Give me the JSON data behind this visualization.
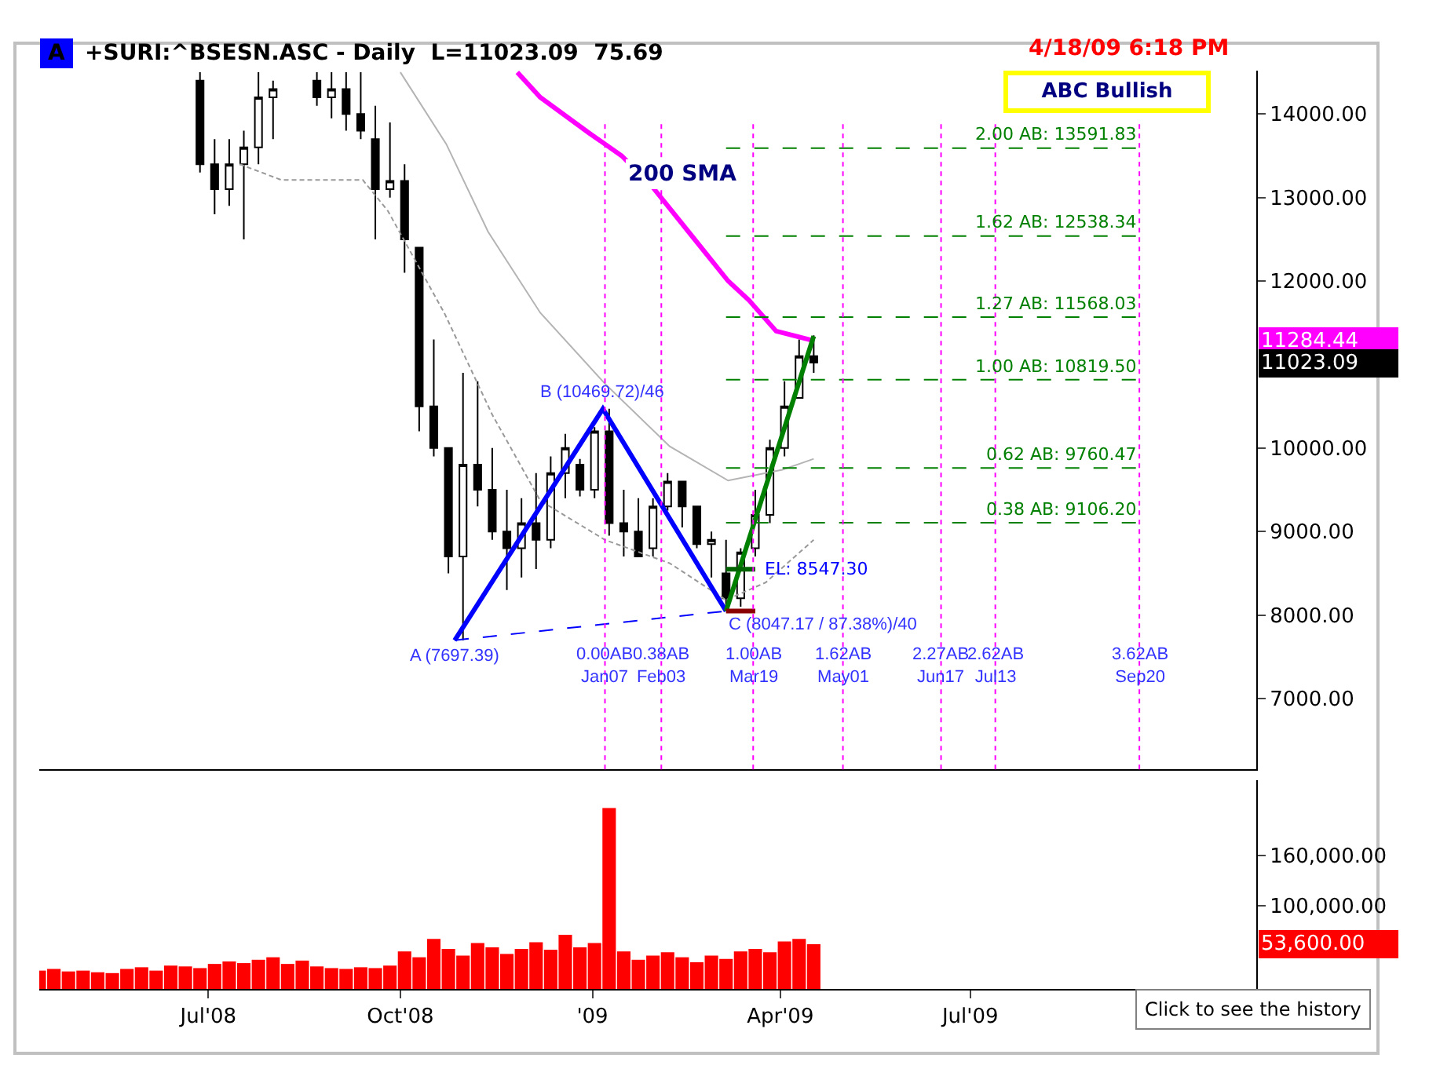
{
  "chart_data": [
    {
      "type": "candlestick",
      "title": "+SURI:^BSESN.ASC - Daily  L=11023.09  75.69",
      "tick_labels": "y",
      "xlim": [
        "2008-04-11",
        "2009-11-15"
      ],
      "ylim": [
        6150,
        14520
      ],
      "yticks": [
        {
          "value": 7000,
          "label": "7000.00"
        },
        {
          "value": 8000,
          "label": "8000.00"
        },
        {
          "value": 9000,
          "label": "9000.00"
        },
        {
          "value": 10000,
          "label": "10000.00"
        },
        {
          "value": 12000,
          "label": "12000.00"
        },
        {
          "value": 13000,
          "label": "13000.00"
        },
        {
          "value": 14000,
          "label": "14000.00"
        }
      ],
      "series": [
        {
          "type": "candlestick",
          "color": "#000000",
          "x": [
            "2008-06-27",
            "2008-07-04",
            "2008-07-11",
            "2008-07-18",
            "2008-07-25",
            "2008-08-01",
            "2008-08-22",
            "2008-08-29",
            "2008-09-05",
            "2008-09-12",
            "2008-09-19",
            "2008-09-26",
            "2008-10-03",
            "2008-10-10",
            "2008-10-17",
            "2008-10-24",
            "2008-10-31",
            "2008-11-07",
            "2008-11-14",
            "2008-11-21",
            "2008-11-28",
            "2008-12-05",
            "2008-12-12",
            "2008-12-19",
            "2008-12-26",
            "2009-01-02",
            "2009-01-09",
            "2009-01-16",
            "2009-01-23",
            "2009-01-30",
            "2009-02-06",
            "2009-02-13",
            "2009-02-20",
            "2009-02-27",
            "2009-03-06",
            "2009-03-13",
            "2009-03-20",
            "2009-03-27",
            "2009-04-03",
            "2009-04-10",
            "2009-04-17"
          ],
          "ohlc": [
            [
              14400,
              14500,
              13300,
              13400
            ],
            [
              13400,
              13700,
              12800,
              13100
            ],
            [
              13100,
              13700,
              12900,
              13400
            ],
            [
              13400,
              13800,
              12500,
              13600
            ],
            [
              13600,
              14500,
              13400,
              14200
            ],
            [
              14200,
              14400,
              13700,
              14300
            ],
            [
              14400,
              14500,
              14100,
              14200
            ],
            [
              14200,
              14500,
              13950,
              14300
            ],
            [
              14300,
              14500,
              13800,
              14000
            ],
            [
              14000,
              14500,
              13700,
              13800
            ],
            [
              13700,
              14100,
              12500,
              13100
            ],
            [
              13100,
              13900,
              13000,
              13200
            ],
            [
              13200,
              13400,
              12100,
              12500
            ],
            [
              12400,
              12400,
              10200,
              10500
            ],
            [
              10500,
              11300,
              9900,
              10000
            ],
            [
              10000,
              10000,
              8500,
              8700
            ],
            [
              8700,
              10900,
              7697.39,
              9800
            ],
            [
              9800,
              10800,
              9300,
              9500
            ],
            [
              9500,
              10000,
              8900,
              9000
            ],
            [
              9000,
              9500,
              8300,
              8800
            ],
            [
              8800,
              9400,
              8450,
              9100
            ],
            [
              9100,
              9700,
              8550,
              8900
            ],
            [
              8900,
              9900,
              8800,
              9700
            ],
            [
              9700,
              10170,
              9400,
              10000
            ],
            [
              9800,
              9870,
              9420,
              9500
            ],
            [
              9500,
              10250,
              9400,
              10200
            ],
            [
              10200,
              10469.72,
              8950,
              9100
            ],
            [
              9100,
              9500,
              8700,
              9000
            ],
            [
              9000,
              9400,
              8700,
              8700
            ],
            [
              8800,
              9400,
              8700,
              9300
            ],
            [
              9300,
              9700,
              9250,
              9600
            ],
            [
              9600,
              9600,
              9050,
              9300
            ],
            [
              9300,
              9300,
              8800,
              8850
            ],
            [
              8850,
              9000,
              8450,
              8900
            ],
            [
              8500,
              8900,
              8047.17,
              8200
            ],
            [
              8200,
              8800,
              8100,
              8750
            ],
            [
              8800,
              9500,
              8700,
              9200
            ],
            [
              9200,
              10100,
              9100,
              10000
            ],
            [
              10000,
              10800,
              9900,
              10500
            ],
            [
              10600,
              11300,
              10600,
              11100
            ],
            [
              11100,
              11350,
              10900,
              11023.09
            ]
          ]
        },
        {
          "type": "line",
          "color": "#b4b4b4",
          "x": [
            "2008-10-01",
            "2008-10-23",
            "2008-11-12",
            "2008-12-07",
            "2009-01-07",
            "2009-02-07",
            "2009-03-07",
            "2009-04-02",
            "2009-04-17"
          ],
          "values": [
            14500,
            13640,
            12590,
            11620,
            10770,
            10020,
            9610,
            9740,
            9870
          ]
        },
        {
          "type": "line",
          "color": "#999999",
          "line_style": "dashed",
          "x": [
            "2008-07-16",
            "2008-08-05",
            "2008-09-13",
            "2008-09-25",
            "2008-10-22",
            "2008-11-14",
            "2008-12-07",
            "2009-01-07",
            "2009-02-07",
            "2009-03-06",
            "2009-03-25",
            "2009-04-17"
          ],
          "values": [
            13400,
            13210,
            13210,
            12840,
            11620,
            10400,
            9370,
            8900,
            8620,
            8180,
            8390,
            8900
          ]
        },
        {
          "type": "line",
          "name": "200 SMA",
          "color": "#ff00ff",
          "x": [
            "2008-11-26",
            "2008-12-07",
            "2008-12-30",
            "2009-01-15",
            "2009-01-30",
            "2009-02-17",
            "2009-03-07",
            "2009-03-17",
            "2009-03-30",
            "2009-04-17"
          ],
          "values": [
            14500,
            14200,
            13780,
            13500,
            13120,
            12560,
            12000,
            11770,
            11400,
            11284.44
          ]
        },
        {
          "type": "line",
          "color": "#0000ff",
          "line_style": "dashed",
          "x": [
            "2008-10-27",
            "2009-03-06"
          ],
          "values": [
            7697.39,
            8047.17
          ]
        },
        {
          "type": "line",
          "color": "#0000ff",
          "x": [
            "2008-10-27",
            "2009-01-06",
            "2009-03-06"
          ],
          "values": [
            7697.39,
            10469.72,
            8047.17
          ]
        },
        {
          "type": "line",
          "color": "#008000",
          "x": [
            "2009-03-06",
            "2009-04-17"
          ],
          "values": [
            8047.17,
            11340
          ]
        },
        {
          "type": "line",
          "name": "EL: 8547.30",
          "color": "#006400",
          "x": [
            "2009-03-06",
            "2009-03-20"
          ],
          "values": [
            8547.3,
            8547.3
          ]
        },
        {
          "type": "line",
          "color": "#8b0000",
          "x": [
            "2009-03-06",
            "2009-03-20"
          ],
          "values": [
            8047.17,
            8047.17
          ]
        },
        {
          "type": "line",
          "name": "0.38 AB: 9106.20",
          "color": "#008000",
          "line_style": "dashed",
          "x": [
            "2009-03-06",
            "2009-09-20"
          ],
          "values": [
            9106.2,
            9106.2
          ]
        },
        {
          "type": "line",
          "name": "0.62 AB: 9760.47",
          "color": "#008000",
          "line_style": "dashed",
          "x": [
            "2009-03-06",
            "2009-09-20"
          ],
          "values": [
            9760.47,
            9760.47
          ]
        },
        {
          "type": "line",
          "name": "1.00 AB: 10819.50",
          "color": "#008000",
          "line_style": "dashed",
          "x": [
            "2009-03-06",
            "2009-09-20"
          ],
          "values": [
            10819.5,
            10819.5
          ]
        },
        {
          "type": "line",
          "name": "1.27 AB: 11568.03",
          "color": "#008000",
          "line_style": "dashed",
          "x": [
            "2009-03-06",
            "2009-09-20"
          ],
          "values": [
            11568.03,
            11568.03
          ]
        },
        {
          "type": "line",
          "name": "1.62 AB: 12538.34",
          "color": "#008000",
          "line_style": "dashed",
          "x": [
            "2009-03-06",
            "2009-09-20"
          ],
          "values": [
            12538.34,
            12538.34
          ]
        },
        {
          "type": "line",
          "name": "2.00 AB: 13591.83",
          "color": "#008000",
          "line_style": "dashed",
          "x": [
            "2009-03-06",
            "2009-09-20"
          ],
          "values": [
            13591.83,
            13591.83
          ]
        }
      ],
      "ref_lines": [
        {
          "axis": "x",
          "value": "2009-01-07",
          "label": "0.00AB\nJan07",
          "color": "#ff00ff",
          "line_style": "dotted"
        },
        {
          "axis": "x",
          "value": "2009-02-03",
          "label": "0.38AB\nFeb03",
          "color": "#ff00ff",
          "line_style": "dotted"
        },
        {
          "axis": "x",
          "value": "2009-03-19",
          "label": "1.00AB\nMar19",
          "color": "#ff00ff",
          "line_style": "dotted"
        },
        {
          "axis": "x",
          "value": "2009-05-01",
          "label": "1.62AB\nMay01",
          "color": "#ff00ff",
          "line_style": "dotted"
        },
        {
          "axis": "x",
          "value": "2009-06-17",
          "label": "2.27AB\nJun17",
          "color": "#ff00ff",
          "line_style": "dotted"
        },
        {
          "axis": "x",
          "value": "2009-07-13",
          "label": "2.62AB\nJul13",
          "color": "#ff00ff",
          "line_style": "dotted"
        },
        {
          "axis": "x",
          "value": "2009-09-20",
          "label": "3.62AB\nSep20",
          "color": "#ff00ff",
          "line_style": "dotted"
        }
      ],
      "annotations": [
        "A",
        "4/18/09 6:18 PM",
        "ABC Bullish",
        {
          "text": "A (7697.39)",
          "x": "2008-10-27",
          "y": 7697.39
        },
        {
          "text": "B (10469.72)/46",
          "x": "2009-01-06",
          "y": 10469.72
        },
        {
          "text": "C (8047.17 / 87.38%)/40",
          "x": "2009-03-06",
          "y": 8047.17
        },
        "11284.44",
        "11023.09"
      ]
    },
    {
      "type": "bar",
      "xlim": [
        "2008-04-11",
        "2009-11-15"
      ],
      "xticks": [
        {
          "value": "2008-07-01",
          "label": "Jul'08"
        },
        {
          "value": "2008-10-01",
          "label": "Oct'08"
        },
        {
          "value": "2009-01-01",
          "label": "'09"
        },
        {
          "value": "2009-04-01",
          "label": "Apr'09"
        },
        {
          "value": "2009-07-01",
          "label": "Jul'09"
        }
      ],
      "ylim": [
        0,
        250000
      ],
      "yticks": [
        {
          "value": 100000,
          "label": "100,000.00"
        },
        {
          "value": 160000,
          "label": "160,000.00"
        }
      ],
      "x": [
        "2008-04-11",
        "2008-04-18",
        "2008-04-25",
        "2008-05-02",
        "2008-05-09",
        "2008-05-16",
        "2008-05-23",
        "2008-05-30",
        "2008-06-06",
        "2008-06-13",
        "2008-06-20",
        "2008-06-27",
        "2008-07-04",
        "2008-07-11",
        "2008-07-18",
        "2008-07-25",
        "2008-08-01",
        "2008-08-08",
        "2008-08-15",
        "2008-08-22",
        "2008-08-29",
        "2008-09-05",
        "2008-09-12",
        "2008-09-19",
        "2008-09-26",
        "2008-10-03",
        "2008-10-10",
        "2008-10-17",
        "2008-10-24",
        "2008-10-31",
        "2008-11-07",
        "2008-11-14",
        "2008-11-21",
        "2008-11-28",
        "2008-12-05",
        "2008-12-12",
        "2008-12-19",
        "2008-12-26",
        "2009-01-02",
        "2009-01-09",
        "2009-01-16",
        "2009-01-23",
        "2009-01-30",
        "2009-02-06",
        "2009-02-13",
        "2009-02-20",
        "2009-02-27",
        "2009-03-06",
        "2009-03-13",
        "2009-03-20",
        "2009-03-27",
        "2009-04-03",
        "2009-04-10",
        "2009-04-17"
      ],
      "series": [
        {
          "color": "#ff0000",
          "values": [
            22000,
            24000,
            21000,
            22000,
            20000,
            19000,
            24000,
            26000,
            22000,
            28000,
            27000,
            25000,
            30000,
            33000,
            31000,
            35000,
            38000,
            30000,
            34000,
            27000,
            25000,
            24000,
            26000,
            25000,
            28000,
            45000,
            38000,
            60000,
            48000,
            40000,
            55000,
            50000,
            42000,
            48000,
            56000,
            47000,
            65000,
            50000,
            55000,
            217000,
            45000,
            35000,
            40000,
            44000,
            38000,
            32000,
            40000,
            36000,
            45000,
            48000,
            44000,
            57000,
            60000,
            53600
          ]
        }
      ],
      "annotations": [
        "Click to see the history",
        "53,600.00"
      ]
    }
  ]
}
